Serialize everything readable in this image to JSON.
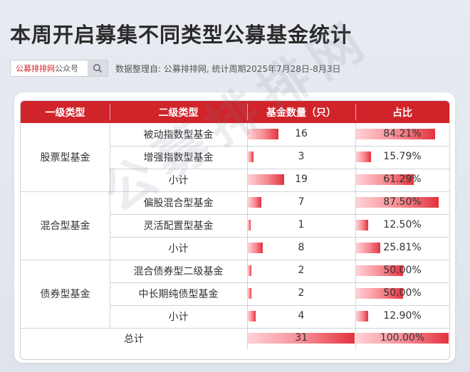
{
  "title": "本周开启募集不同类型公募基金统计",
  "search": {
    "brand": "公募排排网",
    "suffix": "公众号",
    "icon": "search-icon"
  },
  "meta": "数据整理自: 公募排排网, 统计周期2025年7月28日-8月3日",
  "watermark": "公募排排网",
  "colors": {
    "header": "#d0232a",
    "bar_end": "#e2333d",
    "bar_start": "#ffd2d6"
  },
  "table": {
    "headers": [
      "一级类型",
      "二级类型",
      "基金数量（只）",
      "占比"
    ],
    "groups": [
      {
        "name": "股票型基金",
        "rows": [
          {
            "type": "被动指数型基金",
            "count": "16",
            "pct": "84.21%",
            "count_value": 16,
            "pct_value": 84.21
          },
          {
            "type": "增强指数型基金",
            "count": "3",
            "pct": "15.79%",
            "count_value": 3,
            "pct_value": 15.79
          },
          {
            "type": "小计",
            "count": "19",
            "pct": "61.29%",
            "count_value": 19,
            "pct_value": 61.29
          }
        ]
      },
      {
        "name": "混合型基金",
        "rows": [
          {
            "type": "偏股混合型基金",
            "count": "7",
            "pct": "87.50%",
            "count_value": 7,
            "pct_value": 87.5
          },
          {
            "type": "灵活配置型基金",
            "count": "1",
            "pct": "12.50%",
            "count_value": 1,
            "pct_value": 12.5
          },
          {
            "type": "小计",
            "count": "8",
            "pct": "25.81%",
            "count_value": 8,
            "pct_value": 25.81
          }
        ]
      },
      {
        "name": "债券型基金",
        "rows": [
          {
            "type": "混合债券型二级基金",
            "count": "2",
            "pct": "50.00%",
            "count_value": 2,
            "pct_value": 50.0
          },
          {
            "type": "中长期纯债型基金",
            "count": "2",
            "pct": "50.00%",
            "count_value": 2,
            "pct_value": 50.0
          },
          {
            "type": "小计",
            "count": "4",
            "pct": "12.90%",
            "count_value": 4,
            "pct_value": 12.9
          }
        ]
      }
    ],
    "total": {
      "label": "总计",
      "count": "31",
      "pct": "100.00%",
      "count_value": 31,
      "pct_value": 100.0
    }
  }
}
